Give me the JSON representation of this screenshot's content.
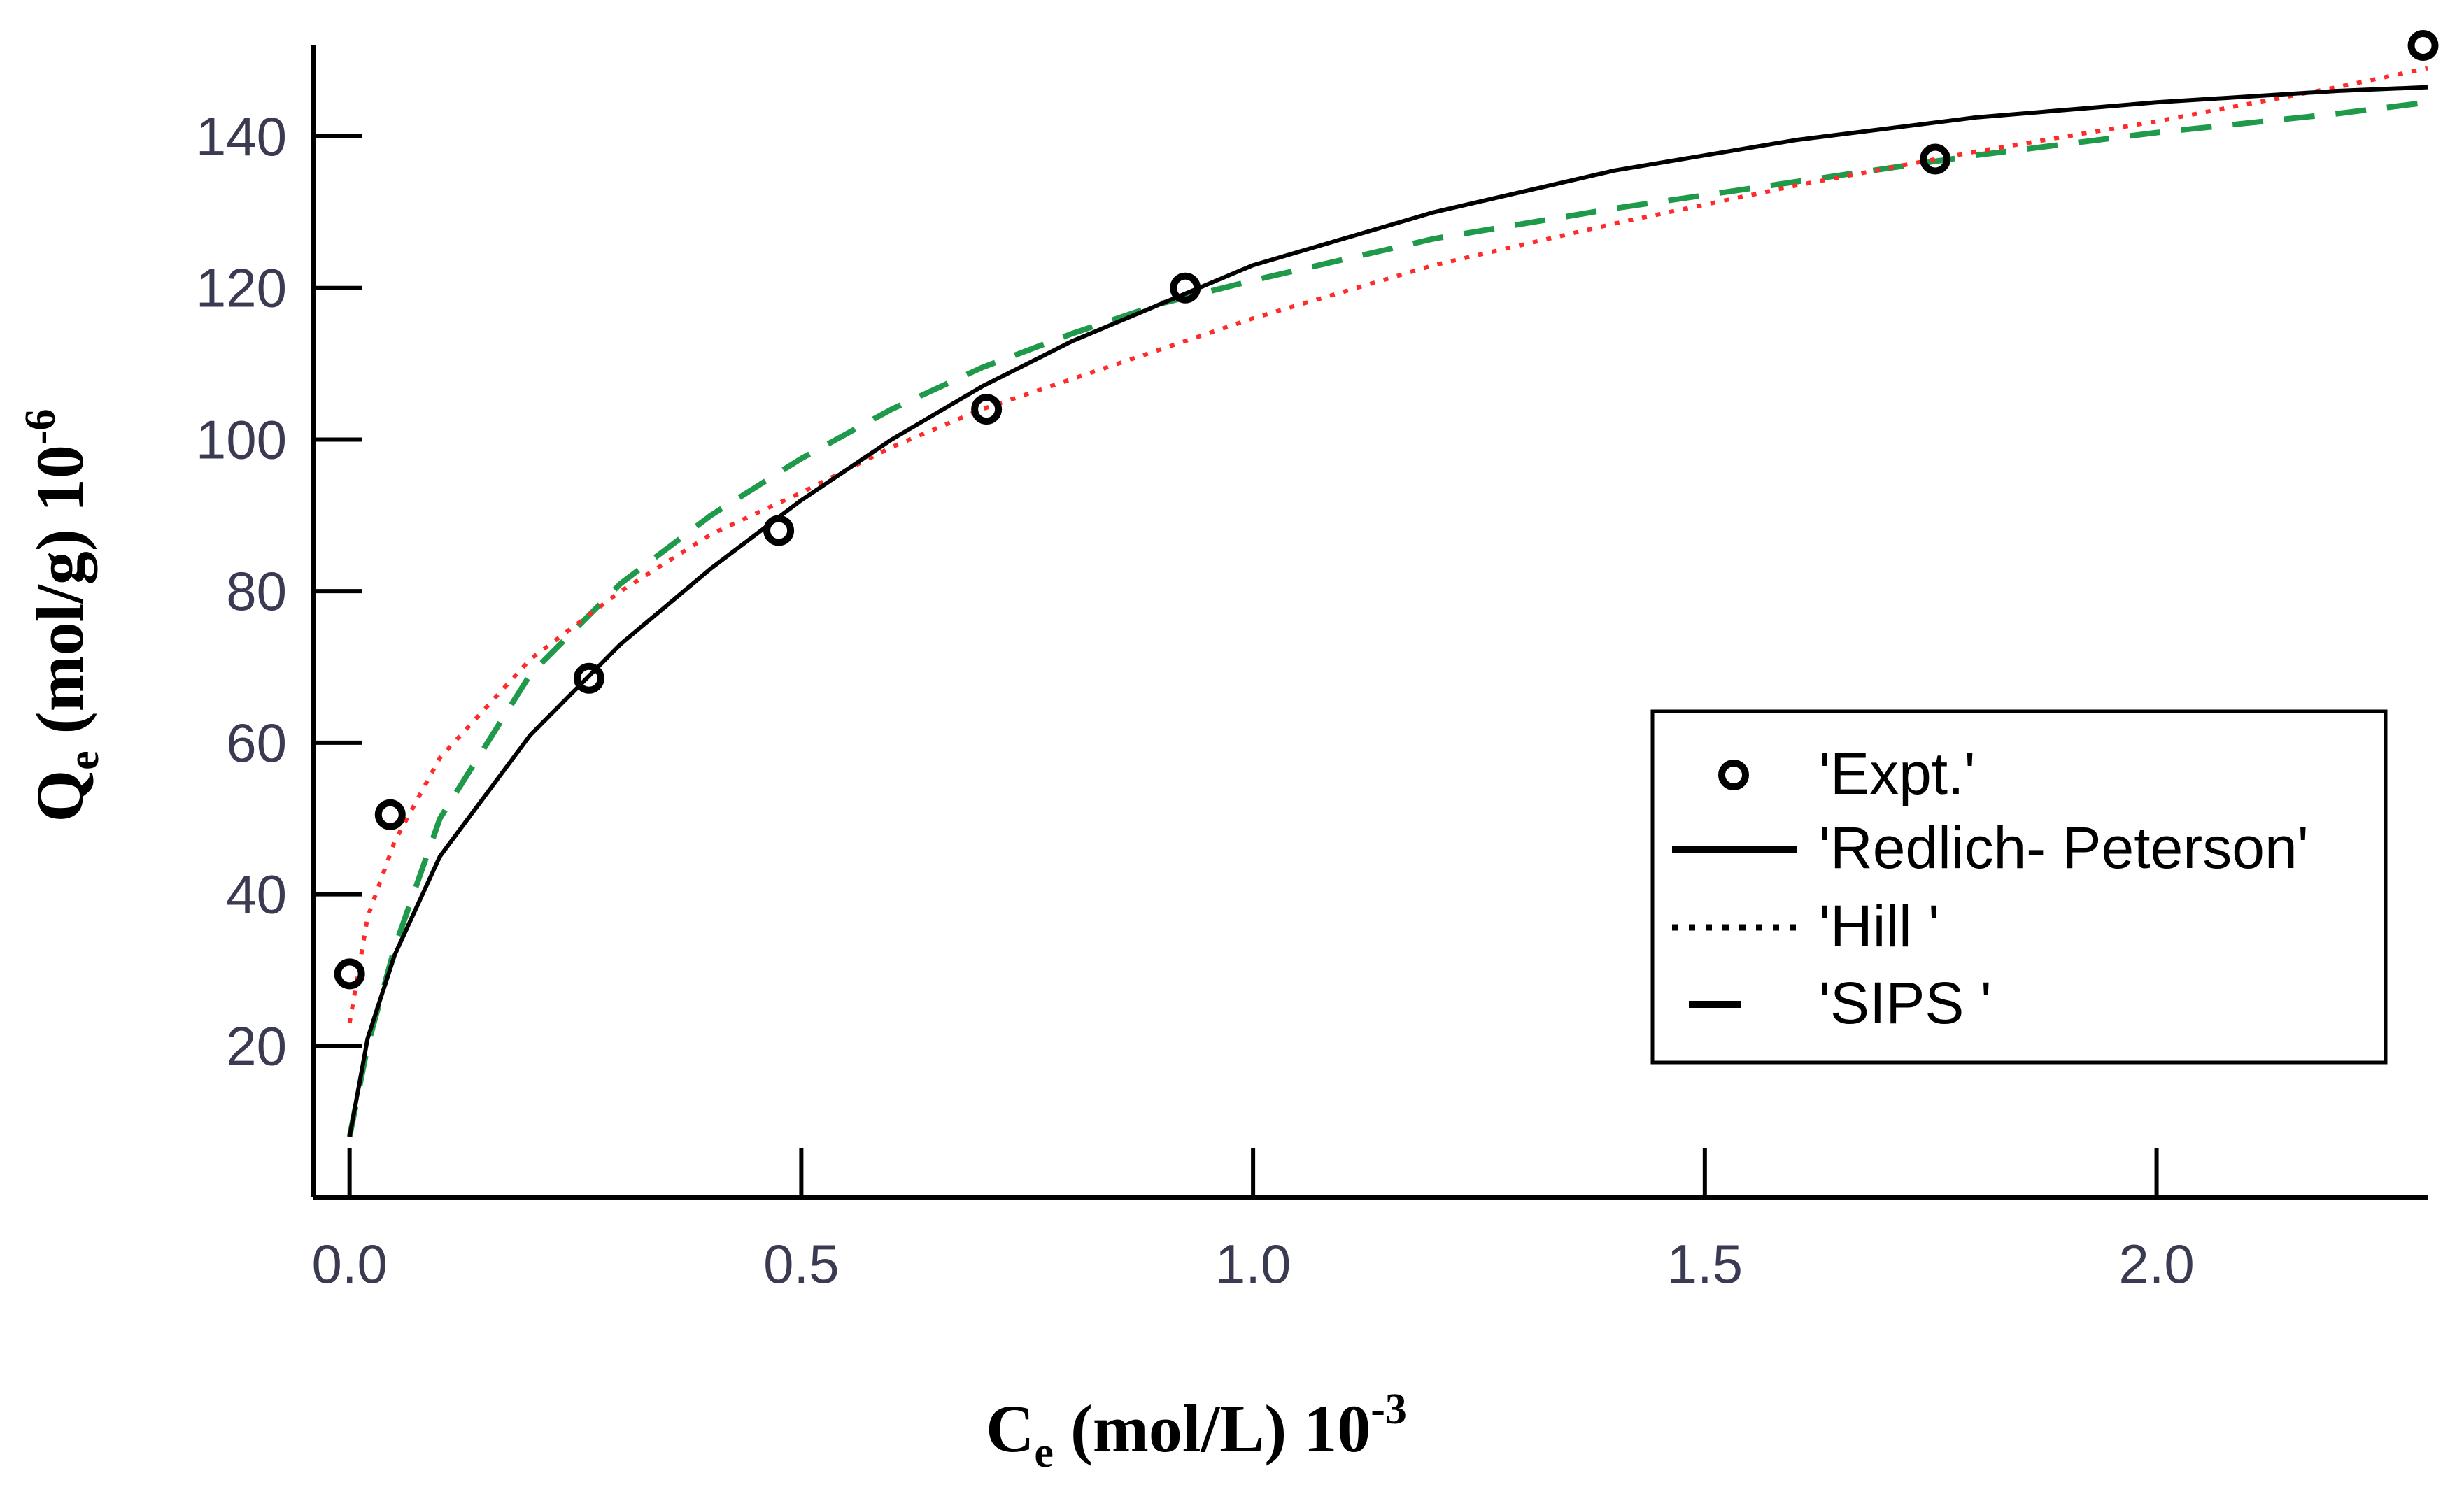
{
  "chart_data": {
    "type": "scatter",
    "xlim": [
      -0.04,
      2.3
    ],
    "ylim": [
      0,
      152
    ],
    "x_ticks": [
      0.0,
      0.5,
      1.0,
      1.5,
      2.0
    ],
    "x_tick_labels": [
      "0.0",
      "0.5",
      "1.0",
      "1.5",
      "2.0"
    ],
    "y_ticks": [
      20,
      40,
      60,
      80,
      100,
      120,
      140
    ],
    "y_tick_labels": [
      "20",
      "40",
      "60",
      "80",
      "100",
      "120",
      "140"
    ],
    "xlabel": {
      "main": "C",
      "sub": "e",
      "rest": " (mol/L) 10",
      "sup": "-3"
    },
    "ylabel": {
      "main": "Q",
      "sub": "e",
      "rest": " (mol/g) 10",
      "sup": "-6"
    },
    "grid": false,
    "legend_position": "bottom-right",
    "series": [
      {
        "name": "'Expt.'",
        "kind": "points",
        "color": "#000000",
        "points": [
          [
            0.0,
            29.5
          ],
          [
            0.045,
            50.5
          ],
          [
            0.265,
            68.5
          ],
          [
            0.475,
            88.0
          ],
          [
            0.705,
            104.0
          ],
          [
            0.925,
            120.0
          ],
          [
            1.755,
            137.0
          ],
          [
            2.295,
            152.0
          ]
        ]
      },
      {
        "name": "'Redlich- Peterson'",
        "kind": "line",
        "style": "solid",
        "color": "#000000",
        "points": [
          [
            0.0,
            8
          ],
          [
            0.02,
            21
          ],
          [
            0.05,
            32
          ],
          [
            0.1,
            45
          ],
          [
            0.2,
            61
          ],
          [
            0.3,
            73
          ],
          [
            0.4,
            83
          ],
          [
            0.5,
            92
          ],
          [
            0.6,
            100
          ],
          [
            0.7,
            107
          ],
          [
            0.8,
            113
          ],
          [
            0.9,
            118
          ],
          [
            1.0,
            123
          ],
          [
            1.2,
            130
          ],
          [
            1.4,
            135.5
          ],
          [
            1.6,
            139.5
          ],
          [
            1.8,
            142.5
          ],
          [
            2.0,
            144.5
          ],
          [
            2.2,
            146
          ],
          [
            2.3,
            146.5
          ]
        ]
      },
      {
        "name": "'Hill '",
        "kind": "line",
        "style": "dotted",
        "color": "#ff2a2a",
        "points": [
          [
            0.0,
            23
          ],
          [
            0.02,
            37
          ],
          [
            0.05,
            47
          ],
          [
            0.1,
            58
          ],
          [
            0.2,
            71
          ],
          [
            0.3,
            80
          ],
          [
            0.4,
            87.5
          ],
          [
            0.5,
            93
          ],
          [
            0.6,
            99
          ],
          [
            0.7,
            104
          ],
          [
            0.8,
            108
          ],
          [
            0.9,
            112
          ],
          [
            1.0,
            116
          ],
          [
            1.2,
            123
          ],
          [
            1.4,
            128.5
          ],
          [
            1.6,
            133.5
          ],
          [
            1.8,
            138
          ],
          [
            2.0,
            142
          ],
          [
            2.2,
            146.5
          ],
          [
            2.3,
            149
          ]
        ]
      },
      {
        "name": "'SIPS '",
        "kind": "line",
        "style": "dashed",
        "color": "#1f9a4a",
        "points": [
          [
            0.0,
            8
          ],
          [
            0.02,
            20
          ],
          [
            0.05,
            33
          ],
          [
            0.1,
            50
          ],
          [
            0.2,
            69
          ],
          [
            0.3,
            81
          ],
          [
            0.4,
            90
          ],
          [
            0.5,
            97.5
          ],
          [
            0.6,
            104
          ],
          [
            0.7,
            109.5
          ],
          [
            0.8,
            114
          ],
          [
            0.9,
            118
          ],
          [
            1.0,
            121
          ],
          [
            1.2,
            126.5
          ],
          [
            1.4,
            130.5
          ],
          [
            1.6,
            134
          ],
          [
            1.8,
            137.5
          ],
          [
            2.0,
            140.5
          ],
          [
            2.2,
            143
          ],
          [
            2.3,
            144.5
          ]
        ]
      }
    ]
  }
}
